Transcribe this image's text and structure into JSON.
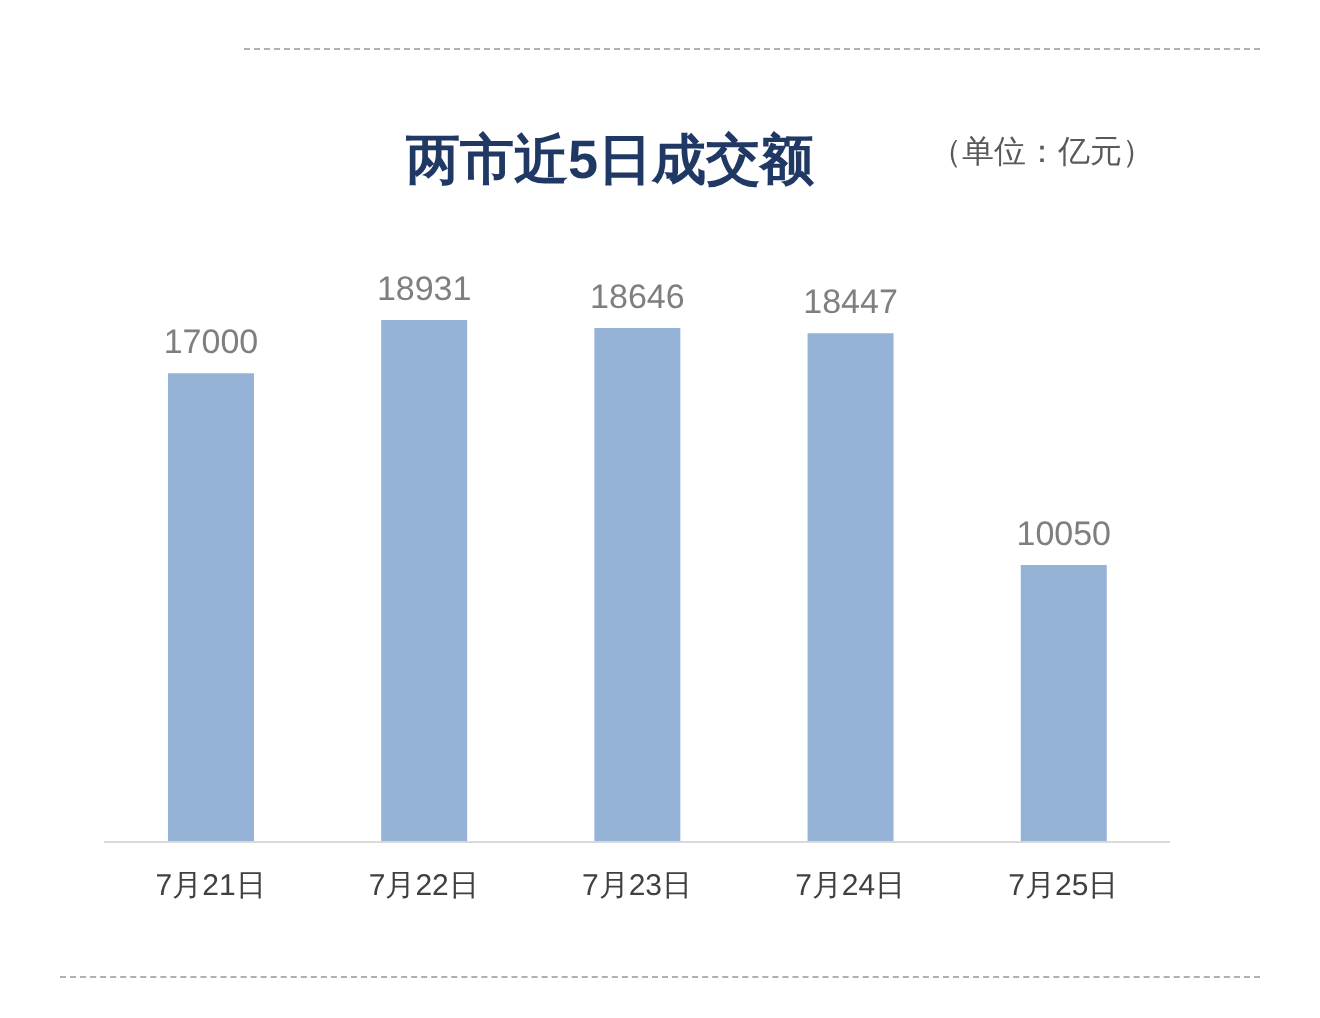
{
  "chart_data": {
    "type": "bar",
    "title": "两市近5日成交额",
    "subtitle": "（单位：亿元）",
    "categories": [
      "7月21日",
      "7月22日",
      "7月23日",
      "7月24日",
      "7月25日"
    ],
    "values": [
      17000,
      18931,
      18646,
      18447,
      10050
    ],
    "color": "#95b3d7",
    "data_labels": true
  }
}
